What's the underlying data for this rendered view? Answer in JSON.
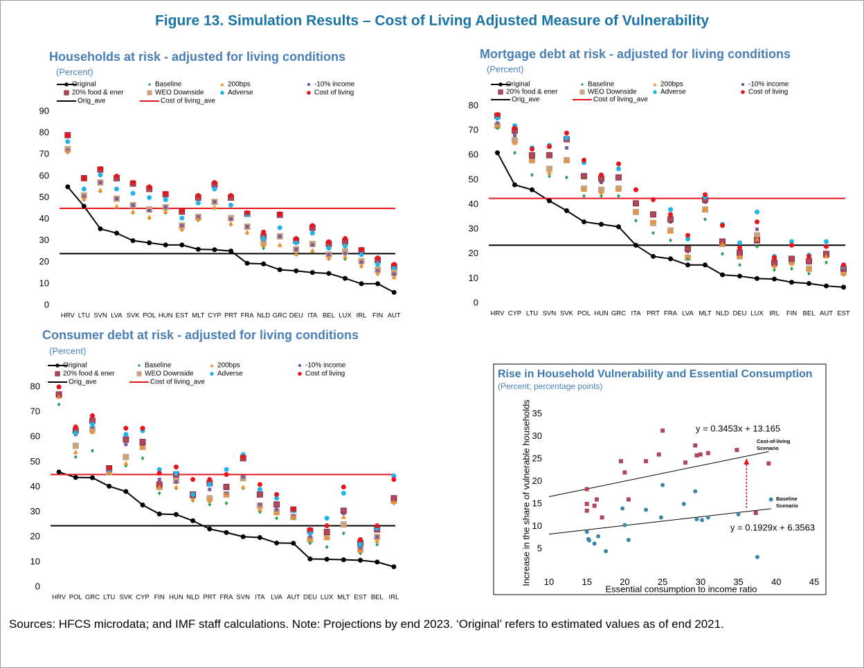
{
  "title": "Figure 13. Simulation Results – Cost of Living Adjusted Measure of Vulnerability",
  "note": "Sources: HFCS microdata; and IMF staff calculations. Note: Projections by end 2023. ‘Original’ refers to estimated values as of end 2021.",
  "chart_data": [
    {
      "type": "dot",
      "title": "Households at risk - adjusted for living conditions",
      "subtitle": "(Percent)",
      "categories": [
        "HRV",
        "LTU",
        "SVN",
        "LVA",
        "SVK",
        "POL",
        "HUN",
        "EST",
        "MLT",
        "CYP",
        "PRT",
        "FRA",
        "NLD",
        "GRC",
        "DEU",
        "ITA",
        "BEL",
        "LUX",
        "IRL",
        "FIN",
        "AUT"
      ],
      "ylim": [
        0,
        90
      ],
      "yticks": [
        0,
        10,
        20,
        30,
        40,
        50,
        60,
        70,
        80,
        90
      ],
      "series": [
        {
          "name": "Original",
          "color": "#000000",
          "marker": "circle",
          "line": true,
          "values": [
            55,
            46,
            35.5,
            33.5,
            30,
            29,
            28,
            28,
            26,
            25.8,
            25.2,
            19.5,
            19.2,
            16.5,
            16,
            15.2,
            14.8,
            12.5,
            10,
            10,
            6
          ]
        },
        {
          "name": "Baseline",
          "color": "#1fa050",
          "marker": "diamond",
          "values": [
            71,
            49,
            53,
            45.5,
            43,
            40.5,
            43,
            35,
            39.5,
            45,
            37.5,
            33.5,
            26.5,
            28,
            23.5,
            25,
            21.5,
            21.5,
            18,
            14.5,
            13
          ]
        },
        {
          "name": "200bps",
          "color": "#f28e2b",
          "marker": "triangle",
          "values": [
            71.5,
            49.5,
            53.5,
            46,
            43.5,
            41,
            43.5,
            35.5,
            40,
            45.5,
            38,
            34,
            28,
            28,
            24,
            25.5,
            22,
            22.5,
            18.5,
            15,
            13
          ]
        },
        {
          "name": "-10% income",
          "color": "#7a5ba0",
          "marker": "square",
          "values": [
            72,
            50.5,
            57,
            49.5,
            46.5,
            44,
            45.5,
            37,
            41,
            48,
            40,
            36.5,
            30.5,
            32,
            26,
            28,
            23.5,
            24,
            20,
            16,
            14.5
          ]
        },
        {
          "name": "20% food & ener",
          "color": "#b0475a",
          "marker": "square",
          "values": [
            79,
            59,
            63,
            59,
            56.5,
            54,
            51.5,
            43.5,
            50,
            56,
            50,
            42.5,
            32,
            42,
            30,
            36,
            28.5,
            29.5,
            25.5,
            21,
            18
          ]
        },
        {
          "name": "WEO Downside",
          "color": "#c9a27e",
          "marker": "square",
          "values": [
            72.5,
            51,
            57,
            49.5,
            46.5,
            44.5,
            45.5,
            37,
            41,
            48,
            40.5,
            36.5,
            29,
            32,
            26,
            28.5,
            23.5,
            25,
            20.5,
            16.5,
            15
          ]
        },
        {
          "name": "Adverse",
          "color": "#1fb5ea",
          "marker": "circle",
          "values": [
            76,
            54,
            60.5,
            54,
            52,
            50,
            49,
            40.5,
            47.5,
            54,
            46.5,
            42,
            31,
            36,
            29,
            33.5,
            26.5,
            27.5,
            23.5,
            19,
            17.5
          ]
        },
        {
          "name": "Cost of living",
          "color": "#e8141b",
          "marker": "circle",
          "values": [
            79,
            59,
            63.5,
            60,
            57,
            55,
            52,
            44,
            51,
            57,
            51,
            43,
            34,
            42.5,
            31,
            37,
            29.5,
            31,
            26,
            22,
            19
          ]
        }
      ],
      "reference_lines": [
        {
          "name": "Orig_ave",
          "color": "#000000",
          "value": 24
        },
        {
          "name": "Cost of living_ave",
          "color": "#e8141b",
          "value": 45
        }
      ]
    },
    {
      "type": "dot",
      "title": "Mortgage debt at risk - adjusted for living conditions",
      "subtitle": "(Percent)",
      "categories": [
        "HRV",
        "CYP",
        "LTU",
        "SVN",
        "SVK",
        "POL",
        "HUN",
        "GRC",
        "ITA",
        "PRT",
        "FRA",
        "LVA",
        "MLT",
        "NLD",
        "DEU",
        "LUX",
        "IRL",
        "FIN",
        "BEL",
        "AUT",
        "EST"
      ],
      "ylim": [
        0,
        80
      ],
      "yticks": [
        0,
        10,
        20,
        30,
        40,
        50,
        60,
        70,
        80
      ],
      "series": [
        {
          "name": "Original",
          "color": "#000000",
          "marker": "circle",
          "line": true,
          "values": [
            61,
            48,
            46,
            41.5,
            37.5,
            33,
            32,
            31,
            23.5,
            19,
            18,
            15.5,
            15.5,
            11.5,
            11,
            10,
            9.8,
            8.5,
            8,
            7,
            6.5
          ]
        },
        {
          "name": "Baseline",
          "color": "#1fa050",
          "marker": "diamond",
          "values": [
            71,
            61,
            52,
            51.5,
            51,
            43.5,
            43.5,
            43.5,
            33.5,
            28.5,
            25.5,
            18,
            34,
            20,
            15.5,
            23,
            13.5,
            14,
            12,
            16.5,
            11.5
          ]
        },
        {
          "name": "200bps",
          "color": "#f28e2b",
          "marker": "triangle",
          "values": [
            72,
            65,
            58,
            53,
            58,
            46,
            45,
            46,
            37,
            33,
            29,
            19,
            38,
            24,
            19,
            26,
            15,
            16,
            14,
            19,
            12
          ]
        },
        {
          "name": "-10% income",
          "color": "#7a5ba0",
          "marker": "square",
          "values": [
            73,
            68,
            59,
            60,
            63,
            51,
            49,
            51,
            40.5,
            35.5,
            33,
            21,
            41,
            25,
            20,
            30,
            16.5,
            18.5,
            16.5,
            20,
            14.5
          ]
        },
        {
          "name": "20% food & ener",
          "color": "#b0475a",
          "marker": "square",
          "values": [
            76,
            70,
            60,
            60,
            66.5,
            51.5,
            50.5,
            51,
            40.5,
            36,
            34,
            22,
            42,
            25,
            20.5,
            25.5,
            16.5,
            18,
            17,
            20,
            14
          ]
        },
        {
          "name": "WEO Downside",
          "color": "#c9a27e",
          "marker": "square",
          "values": [
            72,
            66,
            58,
            54.5,
            58,
            46.5,
            46,
            46.5,
            37,
            32.5,
            29.5,
            18.5,
            38,
            24,
            19,
            27.5,
            16,
            17,
            14,
            19.5,
            12.5
          ]
        },
        {
          "name": "Adverse",
          "color": "#1fb5ea",
          "marker": "circle",
          "values": [
            75,
            72,
            63,
            64,
            67,
            57,
            52,
            54.5,
            46,
            42,
            38,
            26,
            43,
            32,
            24.5,
            37,
            19,
            25,
            19.5,
            25,
            15
          ]
        },
        {
          "name": "Cost of living",
          "color": "#e8141b",
          "marker": "circle",
          "values": [
            76.5,
            71,
            62.5,
            63.5,
            69,
            58,
            52,
            56.5,
            46,
            42,
            36,
            27.5,
            44,
            31.5,
            22.5,
            33,
            18.5,
            23.5,
            19,
            23,
            15.5
          ]
        }
      ],
      "reference_lines": [
        {
          "name": "Orig_ave",
          "color": "#000000",
          "value": 23.5
        },
        {
          "name": "Cost of living_ave",
          "color": "#e8141b",
          "value": 42.5
        }
      ]
    },
    {
      "type": "dot",
      "title": "Consumer debt at risk - adjusted for living conditions",
      "subtitle": "(Percent)",
      "categories": [
        "HRV",
        "POL",
        "GRC",
        "LTU",
        "SVK",
        "CYP",
        "FIN",
        "HUN",
        "NLD",
        "PRT",
        "FRA",
        "SVN",
        "ITA",
        "LVA",
        "AUT",
        "DEU",
        "LUX",
        "MLT",
        "EST",
        "BEL",
        "IRL"
      ],
      "ylim": [
        0,
        80
      ],
      "yticks": [
        0,
        10,
        20,
        30,
        40,
        50,
        60,
        70,
        80
      ],
      "series": [
        {
          "name": "Original",
          "color": "#000000",
          "marker": "circle",
          "line": true,
          "values": [
            46,
            43.8,
            43.7,
            40.3,
            38.2,
            32.8,
            29.2,
            29,
            26.5,
            23.2,
            21.8,
            20.1,
            19.8,
            17.6,
            17.5,
            11.2,
            11.1,
            10.9,
            10.7,
            10,
            8.1
          ]
        },
        {
          "name": "Baseline",
          "color": "#1fa050",
          "marker": "diamond",
          "values": [
            73,
            52,
            54.5,
            45.5,
            48.5,
            51.5,
            37.5,
            39.5,
            34.5,
            33,
            33.5,
            39.5,
            30,
            27.5,
            27.5,
            17.5,
            16,
            21.5,
            13.5,
            17,
            33.5
          ]
        },
        {
          "name": "200bps",
          "color": "#f28e2b",
          "marker": "triangle",
          "values": [
            76,
            54,
            62,
            46,
            49.5,
            56,
            40,
            40,
            35,
            34.5,
            37,
            40,
            31,
            29.5,
            28,
            19,
            19.5,
            28,
            14.5,
            18.5,
            34
          ]
        },
        {
          "name": "-10% income",
          "color": "#7a5ba0",
          "marker": "square",
          "values": [
            77,
            61,
            64,
            46,
            57,
            57,
            43,
            42,
            36,
            39,
            37.5,
            44,
            33,
            31,
            28.5,
            20,
            22,
            29.5,
            15.5,
            20,
            35
          ]
        },
        {
          "name": "20% food & ener",
          "color": "#b0475a",
          "marker": "square",
          "values": [
            77,
            62.5,
            66.5,
            47.5,
            59,
            58,
            41,
            45,
            37,
            41.5,
            40,
            51.5,
            37,
            33,
            31,
            22.5,
            22,
            30.5,
            17.5,
            23,
            35.5
          ]
        },
        {
          "name": "WEO Downside",
          "color": "#c9a27e",
          "marker": "square",
          "values": [
            77,
            56.5,
            63,
            46,
            52,
            56,
            40,
            42.5,
            36.5,
            35.5,
            37,
            43.5,
            32.5,
            30,
            28,
            19,
            20,
            25,
            15,
            20,
            34.5
          ]
        },
        {
          "name": "Adverse",
          "color": "#1fb5ea",
          "marker": "circle",
          "values": [
            80,
            61.5,
            65,
            47,
            61,
            62.5,
            47,
            45.5,
            37,
            41,
            47,
            53,
            39,
            35.5,
            30.5,
            21.5,
            27.5,
            37.5,
            17,
            23.5,
            44.5
          ]
        },
        {
          "name": "Cost of living",
          "color": "#e8141b",
          "marker": "circle",
          "values": [
            80,
            64,
            68.5,
            47.5,
            63.5,
            63.5,
            45.5,
            48,
            43,
            43,
            45,
            52,
            41,
            37,
            31,
            23,
            24.5,
            40,
            19,
            24.5,
            43
          ]
        }
      ],
      "reference_lines": [
        {
          "name": "Orig_ave",
          "color": "#000000",
          "value": 24.5
        },
        {
          "name": "Cost of living_ave",
          "color": "#e8141b",
          "value": 45
        }
      ]
    },
    {
      "type": "scatter",
      "title": "Rise in Household Vulnerability and Essential Consumption",
      "subtitle": "(Percent; percentage points)",
      "xlabel": "Essential consumption to income ratio",
      "ylabel": "Increase in the share of vulnerable households",
      "xlim": [
        10,
        45
      ],
      "xticks": [
        10,
        15,
        20,
        25,
        30,
        35,
        40,
        45
      ],
      "ylim": [
        0,
        35
      ],
      "yticks": [
        5,
        10,
        15,
        20,
        25,
        30,
        35
      ],
      "series": [
        {
          "label_lines": [
            "Cost-of-living",
            "Scenario"
          ],
          "color": "#b0475a",
          "marker": "square",
          "x": [
            15,
            15,
            15,
            16,
            16.3,
            17,
            19.5,
            20,
            20.5,
            22.8,
            24.5,
            25,
            28,
            29.3,
            29.5,
            30,
            31,
            34.8,
            37.3,
            39
          ],
          "values": [
            18.3,
            15,
            13.5,
            14.6,
            16,
            12,
            24.5,
            22,
            16,
            24.5,
            26,
            31.3,
            24.2,
            28,
            25.8,
            26,
            26.3,
            27,
            13,
            24
          ],
          "trendline": {
            "slope": 0.3453,
            "intercept": 13.165,
            "label": "y = 0.3453x + 13.165"
          }
        },
        {
          "label_lines": [
            "Baseline",
            "Scenario"
          ],
          "color": "#3a87a8",
          "marker": "circle",
          "x": [
            15,
            15.2,
            15.3,
            16,
            16.5,
            17.5,
            19.7,
            20,
            20.5,
            22.8,
            24.8,
            25,
            27.8,
            29.3,
            29.5,
            30.2,
            31,
            35,
            37.5,
            39.3
          ],
          "values": [
            8.8,
            7.2,
            6.9,
            6.2,
            7.8,
            4.5,
            14,
            10.3,
            7,
            13.7,
            12,
            19.2,
            15,
            17.8,
            11.6,
            11.4,
            12,
            12.7,
            3.2,
            16
          ],
          "trendline": {
            "slope": 0.1929,
            "intercept": 6.3563,
            "label": "y = 0.1929x + 6.3563"
          }
        }
      ]
    }
  ]
}
